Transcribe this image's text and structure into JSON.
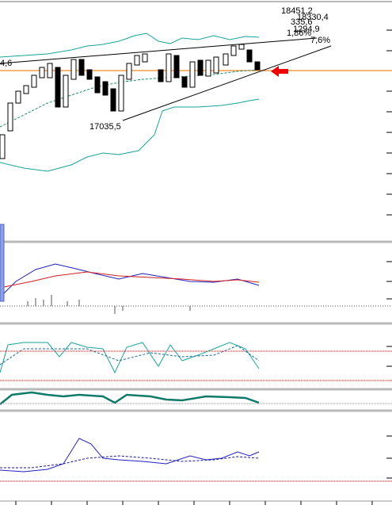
{
  "annotations": [
    "18451,2",
    "18330,4",
    "335,6",
    "1294,9",
    "1,86%",
    "7,6%",
    "17035,5",
    "4,6"
  ]
}
